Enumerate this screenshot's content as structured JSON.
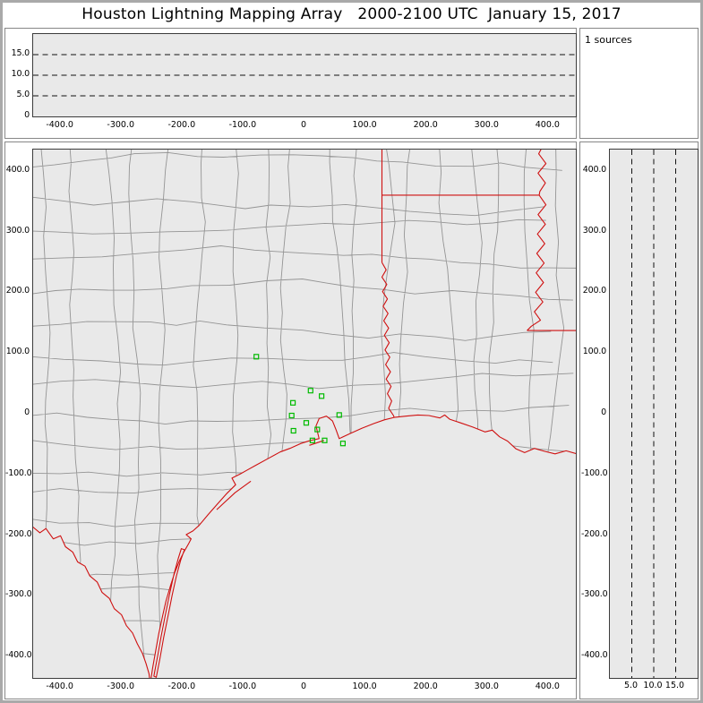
{
  "title": "Houston Lightning Mapping Array   2000-2100 UTC  January 15, 2017",
  "sources_panel": {
    "label": "1 sources"
  },
  "colors": {
    "frame_border": "#a9a9a9",
    "panel_border": "#878787",
    "plot_background": "#e9e9e9",
    "plot_border": "#3c3c3c",
    "gridline": "#111111",
    "county_line": "#949494",
    "state_boundary": "#cf1010",
    "station_marker": "#00bb00",
    "text": "#000000"
  },
  "axes": {
    "east_west_km": {
      "lim": [
        -445,
        445
      ],
      "ticks": [
        {
          "v": -400,
          "l": "-400.0"
        },
        {
          "v": -300,
          "l": "-300.0"
        },
        {
          "v": -200,
          "l": "-200.0"
        },
        {
          "v": -100,
          "l": "-100.0"
        },
        {
          "v": 0,
          "l": "0"
        },
        {
          "v": 100,
          "l": "100.0"
        },
        {
          "v": 200,
          "l": "200.0"
        },
        {
          "v": 300,
          "l": "300.0"
        },
        {
          "v": 400,
          "l": "400.0"
        }
      ]
    },
    "north_south_km": {
      "lim": [
        -435,
        435
      ],
      "ticks": [
        {
          "v": 400,
          "l": "400.0"
        },
        {
          "v": 300,
          "l": "300.0"
        },
        {
          "v": 200,
          "l": "200.0"
        },
        {
          "v": 100,
          "l": "100.0"
        },
        {
          "v": 0,
          "l": "0"
        },
        {
          "v": -100,
          "l": "-100.0"
        },
        {
          "v": -200,
          "l": "-200.0"
        },
        {
          "v": -300,
          "l": "-300.0"
        },
        {
          "v": -400,
          "l": "-400.0"
        }
      ]
    },
    "altitude_top_km": {
      "lim": [
        0,
        20
      ],
      "grid": [
        5,
        10,
        15
      ],
      "ticks": [
        {
          "v": 15,
          "l": "15.0"
        },
        {
          "v": 10,
          "l": "10.0"
        },
        {
          "v": 5,
          "l": "5.0"
        },
        {
          "v": 0,
          "l": "0"
        }
      ]
    },
    "altitude_right_km": {
      "lim": [
        0,
        20
      ],
      "grid": [
        5,
        10,
        15
      ],
      "ticks": [
        {
          "v": 5,
          "l": "5.0"
        },
        {
          "v": 10,
          "l": "10.0"
        },
        {
          "v": 15,
          "l": "15.0"
        }
      ]
    }
  },
  "chart_data": {
    "type": "scatter",
    "title": "Houston Lightning Mapping Array 2000-2100 UTC January 15, 2017",
    "source_count": 1,
    "annotations": [
      "1 sources"
    ],
    "panels": [
      {
        "id": "altitude-vs-east-west",
        "xlim_km": [
          -445,
          445
        ],
        "ylim_km": [
          0,
          20
        ],
        "dashed_gridlines_km": [
          5,
          10,
          15
        ],
        "points": []
      },
      {
        "id": "plan-view-map",
        "xlim_km": [
          -445,
          445
        ],
        "ylim_km": [
          -435,
          435
        ],
        "series": [
          {
            "name": "LMA station markers",
            "marker": "open-green-square",
            "points_km_east_north": [
              [
                -79,
                94
              ],
              [
                -19,
                18
              ],
              [
                10,
                38
              ],
              [
                28,
                29
              ],
              [
                -21,
                -3
              ],
              [
                3,
                -15
              ],
              [
                21,
                -26
              ],
              [
                -18,
                -28
              ],
              [
                13,
                -44
              ],
              [
                33,
                -44
              ],
              [
                57,
                -2
              ],
              [
                63,
                -49
              ]
            ]
          }
        ]
      },
      {
        "id": "altitude-vs-north-south",
        "xlim_km": [
          0,
          20
        ],
        "ylim_km": [
          -435,
          435
        ],
        "dashed_gridlines_km": [
          5,
          10,
          15
        ],
        "points": []
      }
    ]
  }
}
